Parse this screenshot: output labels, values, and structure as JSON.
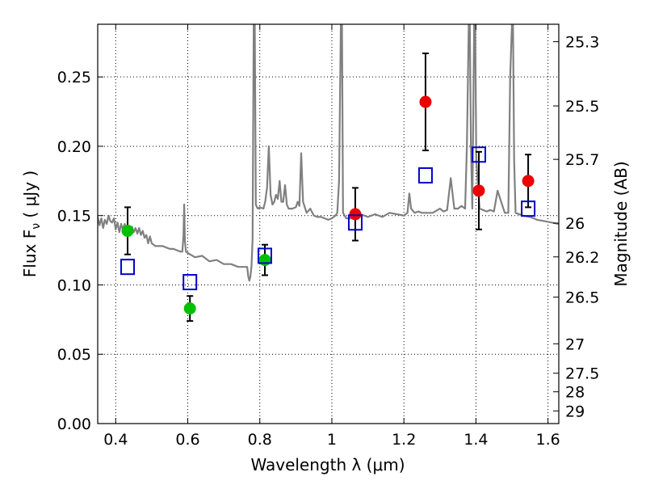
{
  "chart_data": {
    "type": "scatter",
    "xlabel": "Wavelength  λ (μm)",
    "ylabel": "Flux  F",
    "ylabel_sub": "ν",
    "ylabel_unit": "  ( μJy )",
    "y2label": "Magnitude (AB)",
    "xlim": [
      0.35,
      1.63
    ],
    "ylim": [
      0.0,
      0.288
    ],
    "grid": true,
    "grid_style": "dotted",
    "x_ticks": [
      {
        "value": 0.4,
        "label": "0.4"
      },
      {
        "value": 0.6,
        "label": "0.6"
      },
      {
        "value": 0.8,
        "label": "0.8"
      },
      {
        "value": 1.0,
        "label": "1"
      },
      {
        "value": 1.2,
        "label": "1.2"
      },
      {
        "value": 1.4,
        "label": "1.4"
      },
      {
        "value": 1.6,
        "label": "1.6"
      }
    ],
    "y_ticks": [
      {
        "value": 0.0,
        "label": "0.00"
      },
      {
        "value": 0.05,
        "label": "0.05"
      },
      {
        "value": 0.1,
        "label": "0.10"
      },
      {
        "value": 0.15,
        "label": "0.15"
      },
      {
        "value": 0.2,
        "label": "0.20"
      },
      {
        "value": 0.25,
        "label": "0.25"
      }
    ],
    "y2_ticks": [
      {
        "label": "25.3",
        "mag": 25.3
      },
      {
        "label": "25.5",
        "mag": 25.5
      },
      {
        "label": "25.7",
        "mag": 25.7
      },
      {
        "label": "26",
        "mag": 26.0
      },
      {
        "label": "26.2",
        "mag": 26.2
      },
      {
        "label": "26.5",
        "mag": 26.5
      },
      {
        "label": "27",
        "mag": 27.0
      },
      {
        "label": "27.5",
        "mag": 27.5
      },
      {
        "label": "28",
        "mag": 28.0
      },
      {
        "label": "29",
        "mag": 29.0
      }
    ],
    "series": [
      {
        "kind": "line",
        "color": "#808080",
        "points": [
          [
            0.35,
            0.149
          ],
          [
            0.355,
            0.143
          ],
          [
            0.36,
            0.148
          ],
          [
            0.365,
            0.141
          ],
          [
            0.37,
            0.147
          ],
          [
            0.375,
            0.144
          ],
          [
            0.38,
            0.15
          ],
          [
            0.385,
            0.146
          ],
          [
            0.39,
            0.145
          ],
          [
            0.395,
            0.148
          ],
          [
            0.4,
            0.14
          ],
          [
            0.405,
            0.145
          ],
          [
            0.41,
            0.138
          ],
          [
            0.415,
            0.144
          ],
          [
            0.42,
            0.14
          ],
          [
            0.425,
            0.144
          ],
          [
            0.43,
            0.137
          ],
          [
            0.435,
            0.141
          ],
          [
            0.44,
            0.139
          ],
          [
            0.445,
            0.142
          ],
          [
            0.45,
            0.138
          ],
          [
            0.455,
            0.141
          ],
          [
            0.46,
            0.137
          ],
          [
            0.465,
            0.141
          ],
          [
            0.47,
            0.136
          ],
          [
            0.475,
            0.139
          ],
          [
            0.48,
            0.134
          ],
          [
            0.485,
            0.136
          ],
          [
            0.49,
            0.13
          ],
          [
            0.495,
            0.135
          ],
          [
            0.5,
            0.13
          ],
          [
            0.51,
            0.128
          ],
          [
            0.52,
            0.128
          ],
          [
            0.53,
            0.128
          ],
          [
            0.54,
            0.127
          ],
          [
            0.55,
            0.126
          ],
          [
            0.56,
            0.126
          ],
          [
            0.57,
            0.125
          ],
          [
            0.58,
            0.124
          ],
          [
            0.585,
            0.124
          ],
          [
            0.588,
            0.135
          ],
          [
            0.59,
            0.158
          ],
          [
            0.592,
            0.132
          ],
          [
            0.595,
            0.124
          ],
          [
            0.6,
            0.123
          ],
          [
            0.62,
            0.12
          ],
          [
            0.64,
            0.121
          ],
          [
            0.66,
            0.117
          ],
          [
            0.68,
            0.118
          ],
          [
            0.7,
            0.115
          ],
          [
            0.72,
            0.115
          ],
          [
            0.74,
            0.113
          ],
          [
            0.76,
            0.113
          ],
          [
            0.765,
            0.113
          ],
          [
            0.768,
            0.106
          ],
          [
            0.771,
            0.103
          ],
          [
            0.774,
            0.106
          ],
          [
            0.777,
            0.114
          ],
          [
            0.78,
            0.133
          ],
          [
            0.783,
            0.288
          ],
          [
            0.786,
            0.288
          ],
          [
            0.789,
            0.158
          ],
          [
            0.792,
            0.156
          ],
          [
            0.795,
            0.155
          ],
          [
            0.8,
            0.156
          ],
          [
            0.81,
            0.155
          ],
          [
            0.815,
            0.16
          ],
          [
            0.82,
            0.17
          ],
          [
            0.825,
            0.2
          ],
          [
            0.83,
            0.165
          ],
          [
            0.835,
            0.158
          ],
          [
            0.84,
            0.16
          ],
          [
            0.845,
            0.165
          ],
          [
            0.85,
            0.162
          ],
          [
            0.855,
            0.175
          ],
          [
            0.86,
            0.16
          ],
          [
            0.865,
            0.16
          ],
          [
            0.87,
            0.172
          ],
          [
            0.875,
            0.158
          ],
          [
            0.88,
            0.155
          ],
          [
            0.89,
            0.155
          ],
          [
            0.9,
            0.156
          ],
          [
            0.905,
            0.16
          ],
          [
            0.91,
            0.157
          ],
          [
            0.915,
            0.195
          ],
          [
            0.92,
            0.16
          ],
          [
            0.93,
            0.152
          ],
          [
            0.94,
            0.155
          ],
          [
            0.95,
            0.15
          ],
          [
            0.96,
            0.149
          ],
          [
            0.97,
            0.149
          ],
          [
            0.98,
            0.148
          ],
          [
            0.99,
            0.147
          ],
          [
            1.0,
            0.148
          ],
          [
            1.01,
            0.15
          ],
          [
            1.015,
            0.152
          ],
          [
            1.02,
            0.175
          ],
          [
            1.025,
            0.288
          ],
          [
            1.028,
            0.288
          ],
          [
            1.031,
            0.152
          ],
          [
            1.04,
            0.148
          ],
          [
            1.06,
            0.148
          ],
          [
            1.08,
            0.151
          ],
          [
            1.1,
            0.149
          ],
          [
            1.12,
            0.151
          ],
          [
            1.14,
            0.149
          ],
          [
            1.16,
            0.152
          ],
          [
            1.18,
            0.151
          ],
          [
            1.2,
            0.15
          ],
          [
            1.21,
            0.152
          ],
          [
            1.215,
            0.166
          ],
          [
            1.22,
            0.155
          ],
          [
            1.23,
            0.152
          ],
          [
            1.24,
            0.153
          ],
          [
            1.25,
            0.152
          ],
          [
            1.26,
            0.152
          ],
          [
            1.28,
            0.152
          ],
          [
            1.3,
            0.155
          ],
          [
            1.31,
            0.153
          ],
          [
            1.32,
            0.154
          ],
          [
            1.33,
            0.177
          ],
          [
            1.34,
            0.155
          ],
          [
            1.35,
            0.155
          ],
          [
            1.36,
            0.157
          ],
          [
            1.37,
            0.155
          ],
          [
            1.375,
            0.2
          ],
          [
            1.38,
            0.288
          ],
          [
            1.383,
            0.288
          ],
          [
            1.386,
            0.2
          ],
          [
            1.39,
            0.155
          ],
          [
            1.395,
            0.288
          ],
          [
            1.398,
            0.288
          ],
          [
            1.401,
            0.19
          ],
          [
            1.41,
            0.155
          ],
          [
            1.42,
            0.154
          ],
          [
            1.43,
            0.153
          ],
          [
            1.44,
            0.154
          ],
          [
            1.45,
            0.153
          ],
          [
            1.46,
            0.168
          ],
          [
            1.47,
            0.16
          ],
          [
            1.48,
            0.152
          ],
          [
            1.49,
            0.152
          ],
          [
            1.495,
            0.25
          ],
          [
            1.5,
            0.288
          ],
          [
            1.503,
            0.288
          ],
          [
            1.506,
            0.19
          ],
          [
            1.51,
            0.152
          ],
          [
            1.53,
            0.15
          ],
          [
            1.55,
            0.149
          ],
          [
            1.57,
            0.147
          ],
          [
            1.59,
            0.146
          ],
          [
            1.61,
            0.145
          ],
          [
            1.63,
            0.144
          ]
        ]
      },
      {
        "kind": "points",
        "marker": "circle",
        "color": "#00c000",
        "points": [
          {
            "x": 0.433,
            "y": 0.139,
            "err": 0.017
          },
          {
            "x": 0.606,
            "y": 0.083,
            "err": 0.009
          },
          {
            "x": 0.814,
            "y": 0.118,
            "err": 0.011
          }
        ]
      },
      {
        "kind": "points",
        "marker": "circle",
        "color": "#ee0000",
        "points": [
          {
            "x": 1.065,
            "y": 0.151,
            "err": 0.019
          },
          {
            "x": 1.26,
            "y": 0.232,
            "err": 0.035
          },
          {
            "x": 1.408,
            "y": 0.168,
            "err": 0.028
          },
          {
            "x": 1.545,
            "y": 0.175,
            "err": 0.019
          }
        ]
      },
      {
        "kind": "points",
        "marker": "open-square",
        "color": "#0000cc",
        "points": [
          {
            "x": 0.433,
            "y": 0.113
          },
          {
            "x": 0.606,
            "y": 0.102
          },
          {
            "x": 0.814,
            "y": 0.121
          },
          {
            "x": 1.065,
            "y": 0.145
          },
          {
            "x": 1.26,
            "y": 0.179
          },
          {
            "x": 1.408,
            "y": 0.194
          },
          {
            "x": 1.545,
            "y": 0.155
          }
        ]
      }
    ]
  }
}
